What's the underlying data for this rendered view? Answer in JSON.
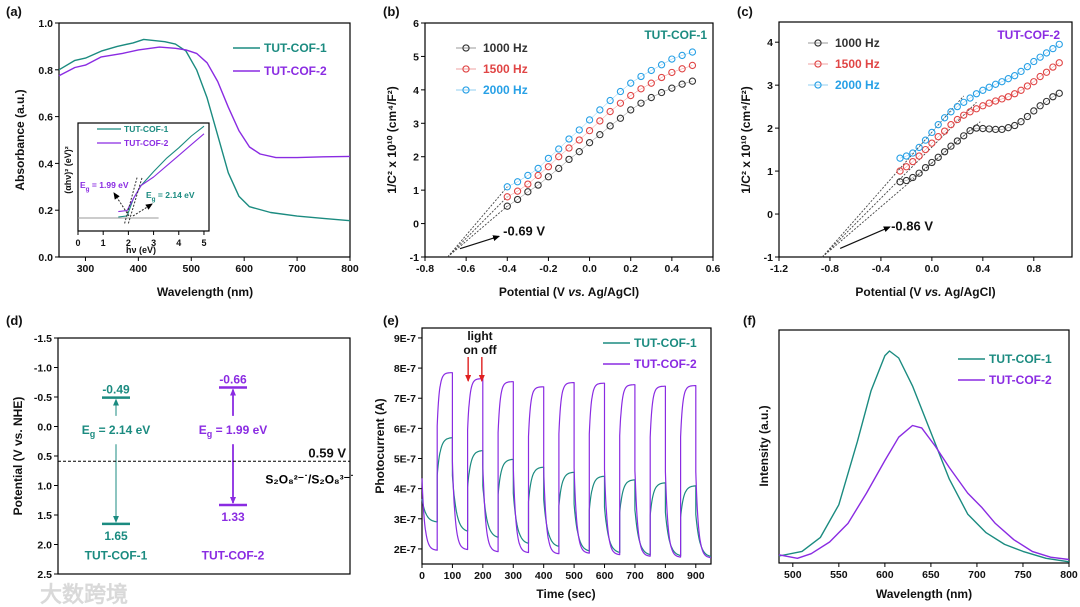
{
  "watermark": "大数跨境",
  "colors": {
    "cof1": "#1b8b80",
    "cof2": "#8a2be2",
    "hz1000": "#333333",
    "hz1500": "#e04545",
    "hz2000": "#27a0e6",
    "arrow_red": "#e02020"
  },
  "chart_data": [
    {
      "panel": "(a)",
      "type": "line",
      "xlabel": "Wavelength (nm)",
      "ylabel": "Absorbance (a.u.)",
      "xlim": [
        250,
        800
      ],
      "ylim": [
        0,
        1.0
      ],
      "xticks": [
        300,
        400,
        500,
        600,
        700,
        800
      ],
      "xtick_labels": [
        "300",
        "400",
        "500",
        "600",
        "700",
        "800"
      ],
      "yticks": [
        0,
        0.2,
        0.4,
        0.6,
        0.8,
        1.0
      ],
      "ytick_labels": [
        "0.0",
        "0.2",
        "0.4",
        "0.6",
        "0.8",
        "1.0"
      ],
      "legend": "top-right",
      "series": [
        {
          "name": "TUT-COF-1",
          "color": "#1b8b80",
          "points": [
            [
              250,
              0.8
            ],
            [
              280,
              0.84
            ],
            [
              300,
              0.85
            ],
            [
              330,
              0.88
            ],
            [
              360,
              0.9
            ],
            [
              390,
              0.915
            ],
            [
              410,
              0.93
            ],
            [
              450,
              0.92
            ],
            [
              470,
              0.91
            ],
            [
              490,
              0.88
            ],
            [
              510,
              0.8
            ],
            [
              530,
              0.68
            ],
            [
              550,
              0.52
            ],
            [
              570,
              0.36
            ],
            [
              590,
              0.26
            ],
            [
              610,
              0.215
            ],
            [
              650,
              0.19
            ],
            [
              700,
              0.175
            ],
            [
              750,
              0.165
            ],
            [
              800,
              0.155
            ]
          ]
        },
        {
          "name": "TUT-COF-2",
          "color": "#8a2be2",
          "points": [
            [
              250,
              0.775
            ],
            [
              280,
              0.81
            ],
            [
              300,
              0.82
            ],
            [
              330,
              0.855
            ],
            [
              370,
              0.87
            ],
            [
              400,
              0.885
            ],
            [
              440,
              0.897
            ],
            [
              470,
              0.892
            ],
            [
              490,
              0.885
            ],
            [
              510,
              0.87
            ],
            [
              530,
              0.83
            ],
            [
              550,
              0.75
            ],
            [
              570,
              0.64
            ],
            [
              590,
              0.54
            ],
            [
              610,
              0.47
            ],
            [
              630,
              0.44
            ],
            [
              660,
              0.425
            ],
            [
              700,
              0.425
            ],
            [
              750,
              0.428
            ],
            [
              800,
              0.43
            ]
          ]
        }
      ],
      "inset": {
        "xlabel": "hν (eV)",
        "ylabel": "(αhν)² (eV)²",
        "xlim": [
          0,
          5.2
        ],
        "ylim": [
          0,
          1
        ],
        "xticks": [
          0,
          1,
          2,
          3,
          4,
          5
        ],
        "xtick_labels": [
          "0",
          "1",
          "2",
          "3",
          "4",
          "5"
        ],
        "baseline": 0.12,
        "series": [
          {
            "name": "TUT-COF-1",
            "color": "#1b8b80",
            "points": [
              [
                1.6,
                0.13
              ],
              [
                1.95,
                0.14
              ],
              [
                2.2,
                0.3
              ],
              [
                2.5,
                0.42
              ],
              [
                3.0,
                0.55
              ],
              [
                3.5,
                0.67
              ],
              [
                4.0,
                0.77
              ],
              [
                4.5,
                0.88
              ],
              [
                5.0,
                0.97
              ]
            ]
          },
          {
            "name": "TUT-COF-2",
            "color": "#8a2be2",
            "points": [
              [
                1.6,
                0.18
              ],
              [
                1.95,
                0.19
              ],
              [
                2.2,
                0.3
              ],
              [
                2.5,
                0.42
              ],
              [
                3.0,
                0.5
              ],
              [
                3.5,
                0.6
              ],
              [
                4.0,
                0.7
              ],
              [
                4.5,
                0.8
              ],
              [
                5.0,
                0.9
              ]
            ]
          }
        ],
        "annotations": [
          {
            "symbol": "E",
            "sub": "g",
            "value": " = 1.99 eV",
            "color": "#8a2be2",
            "x": 1.99
          },
          {
            "symbol": "E",
            "sub": "g",
            "value": " = 2.14 eV",
            "color": "#1b8b80",
            "x": 2.14
          }
        ]
      }
    },
    {
      "panel": "(b)",
      "type": "scatter",
      "title": "TUT-COF-1",
      "xlabel_parts": [
        "Potential (V ",
        "vs.",
        " Ag/AgCl)"
      ],
      "ylabel": "1/C² x 10¹⁰ (cm⁴/F²)",
      "xlim": [
        -0.8,
        0.6
      ],
      "ylim": [
        -1,
        6
      ],
      "xticks": [
        -0.8,
        -0.6,
        -0.4,
        -0.2,
        0,
        0.2,
        0.4,
        0.6
      ],
      "xtick_labels": [
        "-0.8",
        "-0.6",
        "-0.4",
        "-0.2",
        "0.0",
        "0.2",
        "0.4",
        "0.6"
      ],
      "yticks": [
        -1,
        0,
        1,
        2,
        3,
        4,
        5,
        6
      ],
      "ytick_labels": [
        "-1",
        "0",
        "1",
        "2",
        "3",
        "4",
        "5",
        "6"
      ],
      "legend": "top-left",
      "x": [
        -0.4,
        -0.35,
        -0.3,
        -0.25,
        -0.2,
        -0.15,
        -0.1,
        -0.05,
        0,
        0.05,
        0.1,
        0.15,
        0.2,
        0.25,
        0.3,
        0.35,
        0.4,
        0.45,
        0.5
      ],
      "series": [
        {
          "name": "1000 Hz",
          "color": "#333333",
          "values": [
            0.52,
            0.72,
            0.95,
            1.15,
            1.4,
            1.65,
            1.92,
            2.15,
            2.42,
            2.66,
            2.92,
            3.15,
            3.4,
            3.6,
            3.77,
            3.92,
            4.05,
            4.17,
            4.26
          ]
        },
        {
          "name": "1500 Hz",
          "color": "#e04545",
          "values": [
            0.8,
            0.97,
            1.18,
            1.44,
            1.7,
            2.0,
            2.26,
            2.5,
            2.78,
            3.07,
            3.35,
            3.6,
            3.83,
            4.03,
            4.2,
            4.37,
            4.52,
            4.63,
            4.73
          ]
        },
        {
          "name": "2000 Hz",
          "color": "#27a0e6",
          "values": [
            1.1,
            1.25,
            1.44,
            1.65,
            1.95,
            2.23,
            2.53,
            2.8,
            3.1,
            3.4,
            3.68,
            3.95,
            4.2,
            4.4,
            4.58,
            4.75,
            4.92,
            5.03,
            5.13
          ]
        }
      ],
      "flatband": {
        "value": -0.69,
        "label": "-0.69 V"
      }
    },
    {
      "panel": "(c)",
      "type": "scatter",
      "title": "TUT-COF-2",
      "xlabel_parts": [
        "Potential (V ",
        "vs.",
        " Ag/AgCl)"
      ],
      "ylabel": "1/C² x 10¹⁰ (cm⁴/F²)",
      "xlim": [
        -1.2,
        1.1
      ],
      "ylim": [
        -1,
        4.47
      ],
      "xticks": [
        -1.2,
        -0.8,
        -0.4,
        0,
        0.4,
        0.8
      ],
      "xtick_labels": [
        "-1.2",
        "-0.8",
        "-0.4",
        "0.0",
        "0.4",
        "0.8"
      ],
      "yticks": [
        -1,
        0,
        1,
        2,
        3,
        4
      ],
      "ytick_labels": [
        "-1",
        "0",
        "1",
        "2",
        "3",
        "4"
      ],
      "legend": "top-left",
      "x": [
        -0.25,
        -0.2,
        -0.15,
        -0.1,
        -0.05,
        0,
        0.05,
        0.1,
        0.15,
        0.2,
        0.25,
        0.3,
        0.35,
        0.4,
        0.45,
        0.5,
        0.55,
        0.6,
        0.65,
        0.7,
        0.75,
        0.8,
        0.85,
        0.9,
        0.95,
        1.0
      ],
      "series": [
        {
          "name": "1000 Hz",
          "color": "#333333",
          "values": [
            0.75,
            0.78,
            0.85,
            0.95,
            1.08,
            1.2,
            1.32,
            1.45,
            1.58,
            1.7,
            1.82,
            1.94,
            2.0,
            1.99,
            1.98,
            1.97,
            1.97,
            2.01,
            2.06,
            2.15,
            2.27,
            2.4,
            2.52,
            2.62,
            2.73,
            2.81
          ]
        },
        {
          "name": "1500 Hz",
          "color": "#e04545",
          "values": [
            1.0,
            1.1,
            1.22,
            1.35,
            1.5,
            1.65,
            1.8,
            1.93,
            2.08,
            2.2,
            2.3,
            2.38,
            2.45,
            2.52,
            2.58,
            2.63,
            2.68,
            2.73,
            2.8,
            2.88,
            2.98,
            3.08,
            3.2,
            3.3,
            3.42,
            3.52
          ]
        },
        {
          "name": "2000 Hz",
          "color": "#27a0e6",
          "values": [
            1.3,
            1.35,
            1.42,
            1.55,
            1.72,
            1.9,
            2.08,
            2.24,
            2.38,
            2.5,
            2.6,
            2.7,
            2.8,
            2.88,
            2.95,
            3.02,
            3.08,
            3.15,
            3.22,
            3.32,
            3.43,
            3.55,
            3.65,
            3.75,
            3.85,
            3.95
          ]
        }
      ],
      "flatband": {
        "value": -0.86,
        "label": "-0.86 V"
      }
    },
    {
      "panel": "(d)",
      "type": "band-diagram",
      "ylabel": "Potential (V vs. NHE)",
      "ylim": [
        -1.5,
        2.5
      ],
      "yinvert": true,
      "yticks": [
        -1.5,
        -1.0,
        -0.5,
        0,
        0.5,
        1.0,
        1.5,
        2.0,
        2.5
      ],
      "ytick_labels": [
        "-1.5",
        "-1.0",
        "-0.5",
        "0.0",
        "0.5",
        "1.0",
        "1.5",
        "2.0",
        "2.5"
      ],
      "materials": [
        {
          "name": "TUT-COF-1",
          "color": "#1b8b80",
          "cb": -0.49,
          "cb_label": "-0.49",
          "vb": 1.65,
          "vb_label": "1.65",
          "eg": {
            "symbol": "E",
            "sub": "g",
            "value": " = 2.14 eV"
          }
        },
        {
          "name": "TUT-COF-2",
          "color": "#8a2be2",
          "cb": -0.66,
          "cb_label": "-0.66",
          "vb": 1.33,
          "vb_label": "1.33",
          "eg": {
            "symbol": "E",
            "sub": "g",
            "value": " = 1.99 eV"
          }
        }
      ],
      "reference": {
        "value": 0.59,
        "label": "0.59 V",
        "couple": "S₂O₈²⁻˙/S₂O₈³⁻˙"
      }
    },
    {
      "panel": "(e)",
      "type": "line",
      "xlabel": "Time (sec)",
      "ylabel": "Photocurrent (A)",
      "xlim": [
        0,
        950
      ],
      "ylim": [
        1.5e-07,
        9.33e-07
      ],
      "xticks": [
        0,
        100,
        200,
        300,
        400,
        500,
        600,
        700,
        800,
        900
      ],
      "xtick_labels": [
        "0",
        "100",
        "200",
        "300",
        "400",
        "500",
        "600",
        "700",
        "800",
        "900"
      ],
      "yticks": [
        2e-07,
        3e-07,
        4e-07,
        5e-07,
        6e-07,
        7e-07,
        8e-07,
        9e-07
      ],
      "ytick_labels": [
        "2E-7",
        "3E-7",
        "4E-7",
        "5E-7",
        "6E-7",
        "7E-7",
        "8E-7",
        "9E-7"
      ],
      "legend": "top-right",
      "cycle_period_s": 100,
      "light_on_offset_s": 50,
      "annotation": {
        "line1": "light",
        "line2": "on off",
        "on_time": 155,
        "off_time": 200
      },
      "series": [
        {
          "name": "TUT-COF-1",
          "color": "#1b8b80",
          "initial": 4.3e-07,
          "on_current": [
            5.7e-07,
            5.27e-07,
            4.98e-07,
            4.72e-07,
            4.55e-07,
            4.42e-07,
            4.3e-07,
            4.2e-07,
            4.1e-07
          ],
          "off_current": [
            2.88e-07,
            2.55e-07,
            2.35e-07,
            2.15e-07,
            2.05e-07,
            1.9e-07,
            1.85e-07,
            1.78e-07,
            1.75e-07,
            1.72e-07
          ]
        },
        {
          "name": "TUT-COF-2",
          "color": "#8a2be2",
          "initial": 6.3e-07,
          "on_current": [
            7.85e-07,
            7.65e-07,
            7.55e-07,
            7.38e-07,
            7.52e-07,
            7.5e-07,
            7.45e-07,
            7.4e-07,
            7.42e-07
          ],
          "off_current": [
            1.95e-07,
            1.97e-07,
            1.9e-07,
            1.87e-07,
            1.83e-07,
            1.85e-07,
            1.8e-07,
            1.75e-07,
            1.72e-07,
            1.7e-07
          ]
        }
      ]
    },
    {
      "panel": "(f)",
      "type": "line",
      "xlabel": "Wavelength (nm)",
      "ylabel": "Intensity (a.u.)",
      "xlim": [
        485,
        800
      ],
      "ylim": [
        0,
        1
      ],
      "xticks": [
        500,
        550,
        600,
        650,
        700,
        750,
        800
      ],
      "xtick_labels": [
        "500",
        "550",
        "600",
        "650",
        "700",
        "750",
        "800"
      ],
      "yticks": [],
      "ytick_labels": [],
      "legend": "top-right",
      "series": [
        {
          "name": "TUT-COF-1",
          "color": "#1b8b80",
          "points": [
            [
              485,
              0.03
            ],
            [
              510,
              0.05
            ],
            [
              530,
              0.11
            ],
            [
              550,
              0.25
            ],
            [
              570,
              0.52
            ],
            [
              585,
              0.74
            ],
            [
              600,
              0.89
            ],
            [
              605,
              0.91
            ],
            [
              615,
              0.88
            ],
            [
              630,
              0.76
            ],
            [
              650,
              0.56
            ],
            [
              670,
              0.36
            ],
            [
              690,
              0.21
            ],
            [
              710,
              0.13
            ],
            [
              730,
              0.08
            ],
            [
              750,
              0.05
            ],
            [
              775,
              0.02
            ],
            [
              800,
              0.005
            ]
          ]
        },
        {
          "name": "TUT-COF-2",
          "color": "#8a2be2",
          "points": [
            [
              485,
              0.035
            ],
            [
              505,
              0.02
            ],
            [
              520,
              0.04
            ],
            [
              540,
              0.09
            ],
            [
              560,
              0.17
            ],
            [
              580,
              0.3
            ],
            [
              600,
              0.44
            ],
            [
              615,
              0.54
            ],
            [
              630,
              0.59
            ],
            [
              640,
              0.58
            ],
            [
              655,
              0.5
            ],
            [
              670,
              0.41
            ],
            [
              690,
              0.3
            ],
            [
              705,
              0.24
            ],
            [
              720,
              0.17
            ],
            [
              740,
              0.1
            ],
            [
              760,
              0.05
            ],
            [
              780,
              0.025
            ],
            [
              800,
              0.015
            ]
          ]
        }
      ]
    }
  ]
}
